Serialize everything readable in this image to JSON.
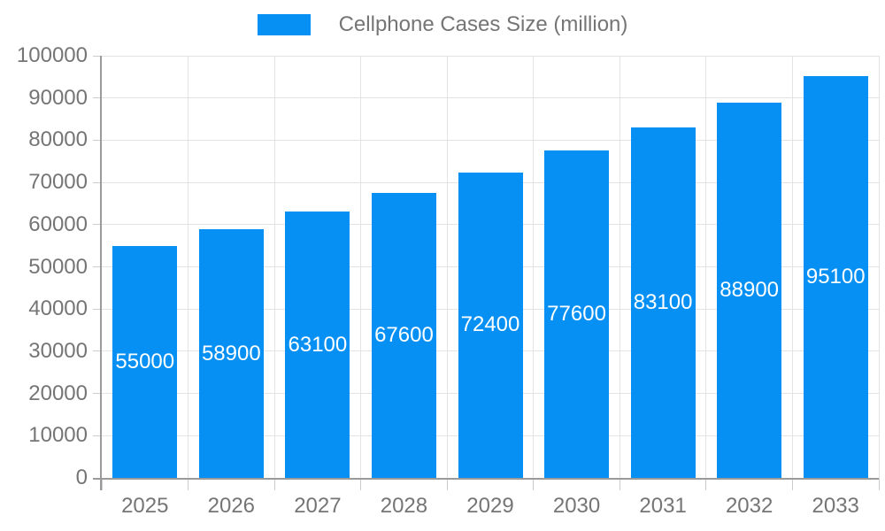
{
  "chart_data": {
    "type": "bar",
    "title": "",
    "categories": [
      "2025",
      "2026",
      "2027",
      "2028",
      "2029",
      "2030",
      "2031",
      "2032",
      "2033"
    ],
    "series": [
      {
        "name": "Cellphone Cases Size (million)",
        "values": [
          55000,
          58900,
          63100,
          67600,
          72400,
          77600,
          83100,
          88900,
          95100
        ]
      }
    ],
    "xlabel": "",
    "ylabel": "",
    "ylim": [
      0,
      100000
    ],
    "ytick_step": 10000,
    "ytick_labels": [
      "0",
      "10000",
      "20000",
      "30000",
      "40000",
      "50000",
      "60000",
      "70000",
      "80000",
      "90000",
      "100000"
    ],
    "grid": true,
    "legend_position": "top",
    "value_labels_shown": true,
    "colors": {
      "bar": "#0690f4",
      "value_label_text": "#ffffff",
      "axis_text": "#757575",
      "axis_line": "#9a9a9a",
      "gridline": "#e3e3e3",
      "background": "#ffffff"
    }
  }
}
